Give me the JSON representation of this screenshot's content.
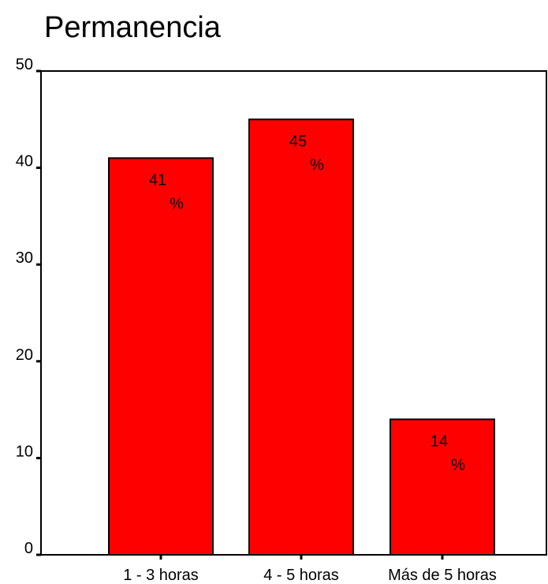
{
  "chart_data": {
    "type": "bar",
    "title": "Permanencia",
    "xlabel": "",
    "ylabel": "",
    "categories": [
      "1 - 3 horas",
      "4 - 5 horas",
      "Más de 5 horas"
    ],
    "values": [
      41,
      45,
      14
    ],
    "data_labels": [
      {
        "value": "41",
        "unit": "%"
      },
      {
        "value": "45",
        "unit": "%"
      },
      {
        "value": "14",
        "unit": "%"
      }
    ],
    "ylim": [
      0,
      50
    ],
    "yticks": [
      0,
      10,
      20,
      30,
      40,
      50
    ],
    "grid": false,
    "bar_color": "#ff0000"
  }
}
